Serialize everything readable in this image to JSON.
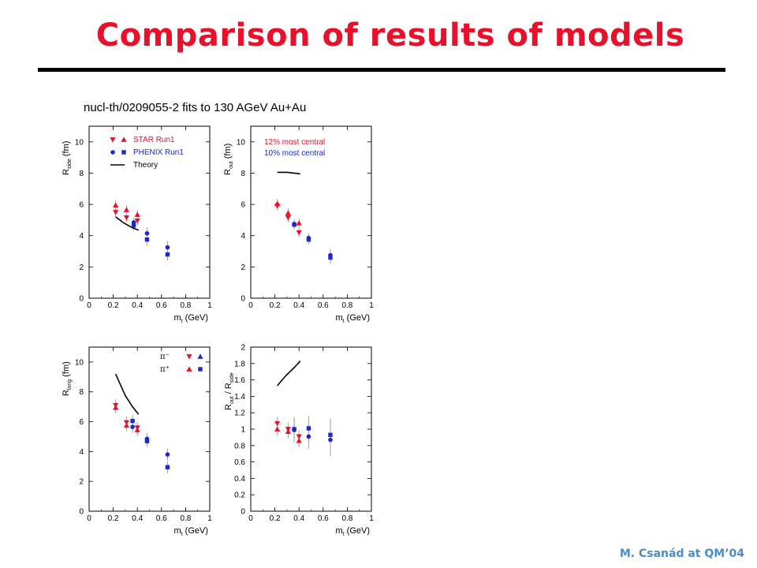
{
  "slide": {
    "title": "Comparison of results of models",
    "caption": "nucl-th/0209055-2 fits to 130 AGeV Au+Au",
    "footer": "M. Csanád at QM’04"
  },
  "colors": {
    "star": "#e8102a",
    "phenix": "#1a28d0",
    "theory": "#000000",
    "error": "#a0a0a0"
  },
  "chart_data": [
    {
      "type": "scatter",
      "panel": "Rside",
      "ylabel": "R_side (fm)",
      "xlabel": "m_t (GeV)",
      "xlim": [
        0,
        1
      ],
      "ylim": [
        0,
        11
      ],
      "xticks": [
        "0",
        "0.2",
        "0.4",
        "0.6",
        "0.8",
        "1"
      ],
      "yticks": [
        "0",
        "2",
        "4",
        "6",
        "8",
        "10"
      ],
      "legend": [
        {
          "label": "STAR Run1",
          "color": "#e8102a",
          "markers": [
            "tri-down",
            "tri-up"
          ]
        },
        {
          "label": "PHENIX Run1",
          "color": "#1a28d0",
          "markers": [
            "circle",
            "square"
          ]
        },
        {
          "label": "Theory",
          "color": "#000000",
          "markers": [
            "line"
          ]
        }
      ],
      "series": [
        {
          "marker": "tri-up",
          "color": "#e8102a",
          "x": [
            0.22,
            0.31,
            0.4
          ],
          "y": [
            5.95,
            5.65,
            5.35
          ],
          "err": [
            0.3,
            0.3,
            0.3
          ]
        },
        {
          "marker": "tri-down",
          "color": "#e8102a",
          "x": [
            0.22,
            0.31,
            0.4
          ],
          "y": [
            5.5,
            5.15,
            4.95
          ],
          "err": [
            0.3,
            0.3,
            0.3
          ]
        },
        {
          "marker": "circle",
          "color": "#1a28d0",
          "x": [
            0.37,
            0.48,
            0.65
          ],
          "y": [
            4.85,
            4.15,
            3.25
          ],
          "err": [
            0.3,
            0.4,
            0.4
          ]
        },
        {
          "marker": "square",
          "color": "#1a28d0",
          "x": [
            0.37,
            0.48,
            0.65
          ],
          "y": [
            4.65,
            3.75,
            2.8
          ],
          "err": [
            0.3,
            0.4,
            0.4
          ]
        }
      ],
      "theory": {
        "x": [
          0.22,
          0.29,
          0.36,
          0.41
        ],
        "y": [
          5.2,
          4.8,
          4.5,
          4.35
        ]
      }
    },
    {
      "type": "scatter",
      "panel": "Rout",
      "ylabel": "R_out (fm)",
      "xlabel": "m_t (GeV)",
      "xlim": [
        0,
        1
      ],
      "ylim": [
        0,
        11
      ],
      "xticks": [
        "0",
        "0.2",
        "0.4",
        "0.6",
        "0.8",
        "1"
      ],
      "yticks": [
        "0",
        "2",
        "4",
        "6",
        "8",
        "10"
      ],
      "legend_text": [
        {
          "label": "12% most central",
          "color": "#e8102a"
        },
        {
          "label": "10% most central",
          "color": "#1a28d0"
        }
      ],
      "series": [
        {
          "marker": "tri-up",
          "color": "#e8102a",
          "x": [
            0.22,
            0.31,
            0.4
          ],
          "y": [
            6.05,
            5.45,
            4.8
          ],
          "err": [
            0.3,
            0.3,
            0.3
          ]
        },
        {
          "marker": "tri-down",
          "color": "#e8102a",
          "x": [
            0.22,
            0.31,
            0.4
          ],
          "y": [
            5.9,
            5.15,
            4.2
          ],
          "err": [
            0.3,
            0.3,
            0.3
          ]
        },
        {
          "marker": "circle",
          "color": "#1a28d0",
          "x": [
            0.36,
            0.48,
            0.66
          ],
          "y": [
            4.75,
            3.85,
            2.75
          ],
          "err": [
            0.3,
            0.3,
            0.4
          ]
        },
        {
          "marker": "square",
          "color": "#1a28d0",
          "x": [
            0.36,
            0.48,
            0.66
          ],
          "y": [
            4.7,
            3.75,
            2.6
          ],
          "err": [
            0.3,
            0.3,
            0.4
          ]
        }
      ],
      "theory": {
        "x": [
          0.22,
          0.3,
          0.36,
          0.41
        ],
        "y": [
          8.05,
          8.05,
          8.0,
          7.95
        ]
      }
    },
    {
      "type": "scatter",
      "panel": "Rlong",
      "ylabel": "R_long (fm)",
      "xlabel": "m_t (GeV)",
      "xlim": [
        0,
        1
      ],
      "ylim": [
        0,
        11
      ],
      "xticks": [
        "0",
        "0.2",
        "0.4",
        "0.6",
        "0.8",
        "1"
      ],
      "yticks": [
        "0",
        "2",
        "4",
        "6",
        "8",
        "10"
      ],
      "legend_particles": [
        {
          "label": "π⁻",
          "color_red_marker": "tri-down",
          "color_blue_marker": "tri-up"
        },
        {
          "label": "π⁺",
          "color_red_marker": "tri-up",
          "color_blue_marker": "square"
        }
      ],
      "series": [
        {
          "marker": "tri-up",
          "color": "#e8102a",
          "x": [
            0.22,
            0.31,
            0.4
          ],
          "y": [
            6.95,
            5.75,
            5.45
          ],
          "err": [
            0.4,
            0.4,
            0.4
          ]
        },
        {
          "marker": "tri-down",
          "color": "#e8102a",
          "x": [
            0.22,
            0.31,
            0.4
          ],
          "y": [
            7.1,
            5.95,
            5.6
          ],
          "err": [
            0.4,
            0.4,
            0.4
          ]
        },
        {
          "marker": "circle",
          "color": "#1a28d0",
          "x": [
            0.36,
            0.48,
            0.65
          ],
          "y": [
            5.65,
            4.85,
            3.8
          ],
          "err": [
            0.4,
            0.4,
            0.4
          ]
        },
        {
          "marker": "square",
          "color": "#1a28d0",
          "x": [
            0.36,
            0.48,
            0.65
          ],
          "y": [
            6.05,
            4.7,
            2.95
          ],
          "err": [
            0.4,
            0.4,
            0.4
          ]
        }
      ],
      "theory": {
        "x": [
          0.22,
          0.3,
          0.36,
          0.41
        ],
        "y": [
          9.2,
          7.75,
          7.0,
          6.5
        ]
      }
    },
    {
      "type": "scatter",
      "panel": "Ratio",
      "ylabel": "R_out / R_side",
      "xlabel": "m_t (GeV)",
      "xlim": [
        0,
        1
      ],
      "ylim": [
        0,
        2
      ],
      "xticks": [
        "0",
        "0.2",
        "0.4",
        "0.6",
        "0.8",
        "1"
      ],
      "yticks": [
        "0",
        "0.2",
        "0.4",
        "0.6",
        "0.8",
        "1",
        "1.2",
        "1.4",
        "1.6",
        "1.8",
        "2"
      ],
      "series": [
        {
          "marker": "tri-down",
          "color": "#e8102a",
          "x": [
            0.22,
            0.31,
            0.4
          ],
          "y": [
            1.07,
            1.0,
            0.91
          ],
          "err": [
            0.08,
            0.08,
            0.08
          ]
        },
        {
          "marker": "tri-up",
          "color": "#e8102a",
          "x": [
            0.22,
            0.31,
            0.4
          ],
          "y": [
            1.0,
            0.97,
            0.86
          ],
          "err": [
            0.08,
            0.08,
            0.08
          ]
        },
        {
          "marker": "circle",
          "color": "#1a28d0",
          "x": [
            0.36,
            0.48,
            0.66
          ],
          "y": [
            0.99,
            0.91,
            0.87
          ],
          "err": [
            0.15,
            0.15,
            0.2
          ]
        },
        {
          "marker": "square",
          "color": "#1a28d0",
          "x": [
            0.36,
            0.48,
            0.66
          ],
          "y": [
            1.0,
            1.01,
            0.93
          ],
          "err": [
            0.15,
            0.15,
            0.2
          ]
        }
      ],
      "theory": {
        "x": [
          0.22,
          0.29,
          0.36,
          0.41
        ],
        "y": [
          1.53,
          1.65,
          1.75,
          1.83
        ]
      }
    }
  ]
}
